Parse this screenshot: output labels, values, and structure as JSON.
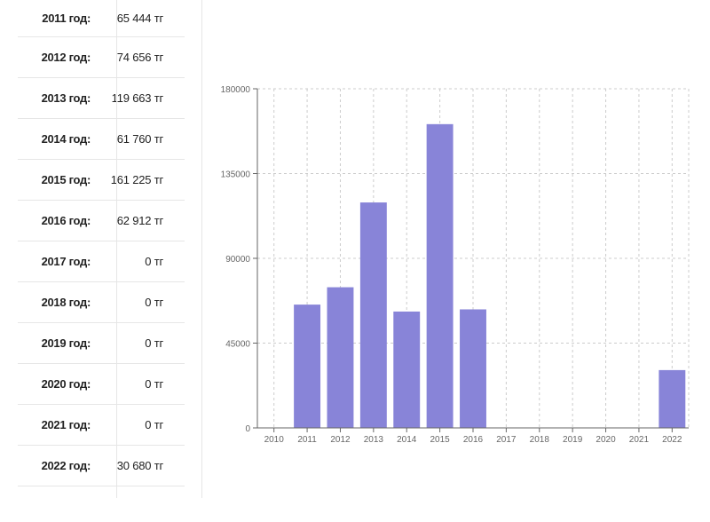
{
  "table": {
    "rows": [
      {
        "year": "2011 год:",
        "value": "65 444 тг"
      },
      {
        "year": "2012 год:",
        "value": "74 656 тг"
      },
      {
        "year": "2013 год:",
        "value": "119 663 тг"
      },
      {
        "year": "2014 год:",
        "value": "61 760 тг"
      },
      {
        "year": "2015 год:",
        "value": "161 225 тг"
      },
      {
        "year": "2016 год:",
        "value": "62 912 тг"
      },
      {
        "year": "2017 год:",
        "value": "0 тг"
      },
      {
        "year": "2018 год:",
        "value": "0 тг"
      },
      {
        "year": "2019 год:",
        "value": "0 тг"
      },
      {
        "year": "2020 год:",
        "value": "0 тг"
      },
      {
        "year": "2021 год:",
        "value": "0 тг"
      },
      {
        "year": "2022 год:",
        "value": "30 680 тг"
      }
    ]
  },
  "chart_data": {
    "type": "bar",
    "categories": [
      "2010",
      "2011",
      "2012",
      "2013",
      "2014",
      "2015",
      "2016",
      "2017",
      "2018",
      "2019",
      "2020",
      "2021",
      "2022"
    ],
    "values": [
      0,
      65444,
      74656,
      119663,
      61760,
      161225,
      62912,
      0,
      0,
      0,
      0,
      0,
      30680
    ],
    "title": "",
    "xlabel": "",
    "ylabel": "",
    "ylim": [
      0,
      180000
    ],
    "yticks": [
      "0",
      "45000",
      "90000",
      "135000",
      "180000"
    ],
    "grid": true,
    "legend": "none",
    "colors": {
      "bar": "#8884d8",
      "grid": "#cccccc",
      "axis": "#666666"
    }
  }
}
